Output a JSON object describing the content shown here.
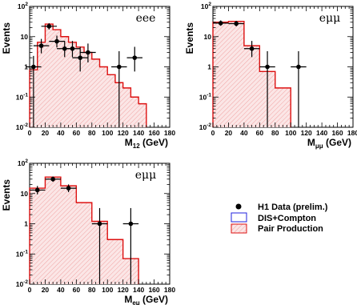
{
  "chart_data": [
    {
      "type": "histogram",
      "channel_label": "eee",
      "ylabel": "Events",
      "xlabel": "M12 (GeV)",
      "xlabel_main": "M",
      "xlabel_sub": "12",
      "xlabel_unit": " (GeV)",
      "xlim": [
        0,
        180
      ],
      "ylim": [
        0.01,
        100
      ],
      "yscale": "log",
      "x_ticks": [
        "0",
        "20",
        "40",
        "60",
        "80",
        "100",
        "120",
        "140",
        "160",
        "180"
      ],
      "y_ticks": [
        {
          "base": "10",
          "exp": "-2",
          "v": 0.01
        },
        {
          "base": "10",
          "exp": "-1",
          "v": 0.1
        },
        {
          "base": "1",
          "exp": "",
          "v": 1
        },
        {
          "base": "10",
          "exp": "",
          "v": 10
        },
        {
          "base": "10",
          "exp": "2",
          "v": 100
        }
      ],
      "histogram": {
        "bin_edges": [
          0,
          10,
          20,
          30,
          40,
          50,
          60,
          70,
          80,
          90,
          100,
          110,
          120,
          130,
          140,
          150
        ],
        "values": [
          0.8,
          6.5,
          26,
          17,
          10,
          6.5,
          4.5,
          3,
          1.8,
          1.0,
          0.55,
          0.3,
          0.2,
          0.1,
          0.06
        ]
      },
      "data_points": [
        {
          "x": 5,
          "y": 1.0,
          "yerr_lo": 0.99,
          "yerr_hi": 1.3
        },
        {
          "x": 15,
          "y": 5,
          "yerr_lo": 2.2,
          "yerr_hi": 3.4
        },
        {
          "x": 25,
          "y": 22,
          "yerr_lo": 4.7,
          "yerr_hi": 5.9
        },
        {
          "x": 35,
          "y": 7,
          "yerr_lo": 2.6,
          "yerr_hi": 3.8
        },
        {
          "x": 45,
          "y": 4,
          "yerr_lo": 1.9,
          "yerr_hi": 3.2
        },
        {
          "x": 55,
          "y": 4,
          "yerr_lo": 1.9,
          "yerr_hi": 3.2
        },
        {
          "x": 65,
          "y": 2,
          "yerr_lo": 1.3,
          "yerr_hi": 2.6
        },
        {
          "x": 75,
          "y": 3,
          "yerr_lo": 1.6,
          "yerr_hi": 2.9
        },
        {
          "x": 115,
          "y": 1,
          "yerr_lo": 0.99,
          "yerr_hi": 2.3
        },
        {
          "x": 135,
          "y": 2,
          "yerr_lo": 1.3,
          "yerr_hi": 2.6
        }
      ]
    },
    {
      "type": "histogram",
      "channel_label": "eμμ",
      "ylabel": "Events",
      "xlabel": "Mμμ (GeV)",
      "xlabel_main": "M",
      "xlabel_sub": "μμ",
      "xlabel_unit": " (GeV)",
      "xlim": [
        0,
        180
      ],
      "ylim": [
        0.01,
        100
      ],
      "yscale": "log",
      "x_ticks": [
        "0",
        "20",
        "40",
        "60",
        "80",
        "100",
        "120",
        "140",
        "160",
        "180"
      ],
      "y_ticks": [
        {
          "base": "10",
          "exp": "-2",
          "v": 0.01
        },
        {
          "base": "10",
          "exp": "-1",
          "v": 0.1
        },
        {
          "base": "1",
          "exp": "",
          "v": 1
        },
        {
          "base": "10",
          "exp": "",
          "v": 10
        },
        {
          "base": "10",
          "exp": "2",
          "v": 100
        }
      ],
      "histogram": {
        "bin_edges": [
          0,
          20,
          40,
          60,
          80,
          100
        ],
        "values": [
          30,
          32,
          5,
          0.7,
          0.2
        ]
      },
      "data_points": [
        {
          "x": 10,
          "y": 28,
          "yerr_lo": 5.2,
          "yerr_hi": 6.4
        },
        {
          "x": 30,
          "y": 27,
          "yerr_lo": 5.1,
          "yerr_hi": 6.3
        },
        {
          "x": 50,
          "y": 4,
          "yerr_lo": 1.9,
          "yerr_hi": 3.2
        },
        {
          "x": 70,
          "y": 1,
          "yerr_lo": 0.99,
          "yerr_hi": 2.3
        },
        {
          "x": 110,
          "y": 1,
          "yerr_lo": 0.99,
          "yerr_hi": 2.3
        }
      ]
    },
    {
      "type": "histogram",
      "channel_label": "eμμ",
      "ylabel": "Events",
      "xlabel": "Meμ (GeV)",
      "xlabel_main": "M",
      "xlabel_sub": "eμ",
      "xlabel_unit": " (GeV)",
      "xlim": [
        0,
        180
      ],
      "ylim": [
        0.01,
        100
      ],
      "yscale": "log",
      "x_ticks": [
        "0",
        "20",
        "40",
        "60",
        "80",
        "100",
        "120",
        "140",
        "160",
        "180"
      ],
      "y_ticks": [
        {
          "base": "10",
          "exp": "-2",
          "v": 0.01
        },
        {
          "base": "10",
          "exp": "-1",
          "v": 0.1
        },
        {
          "base": "1",
          "exp": "",
          "v": 1
        },
        {
          "base": "10",
          "exp": "",
          "v": 10
        },
        {
          "base": "10",
          "exp": "2",
          "v": 100
        }
      ],
      "histogram": {
        "bin_edges": [
          0,
          20,
          40,
          60,
          80,
          100,
          120,
          140
        ],
        "values": [
          15,
          35,
          18,
          5,
          1.2,
          0.3,
          0.07
        ]
      },
      "data_points": [
        {
          "x": 10,
          "y": 13,
          "yerr_lo": 3.6,
          "yerr_hi": 4.8
        },
        {
          "x": 30,
          "y": 30,
          "yerr_lo": 5.5,
          "yerr_hi": 6.6
        },
        {
          "x": 50,
          "y": 15,
          "yerr_lo": 3.9,
          "yerr_hi": 5.0
        },
        {
          "x": 90,
          "y": 1,
          "yerr_lo": 0.99,
          "yerr_hi": 2.3
        },
        {
          "x": 130,
          "y": 1,
          "yerr_lo": 0.99,
          "yerr_hi": 2.3
        }
      ]
    }
  ],
  "legend": {
    "data_label": "H1 Data (prelim.)",
    "dis_label": "DIS+Compton",
    "pair_label": "Pair Production"
  },
  "colors": {
    "histogram_line": "#dd1111",
    "histogram_fill": "#f9d6d6",
    "hatch": "#f2a0a0",
    "dis_line": "#2020dd",
    "marker": "#000000"
  }
}
